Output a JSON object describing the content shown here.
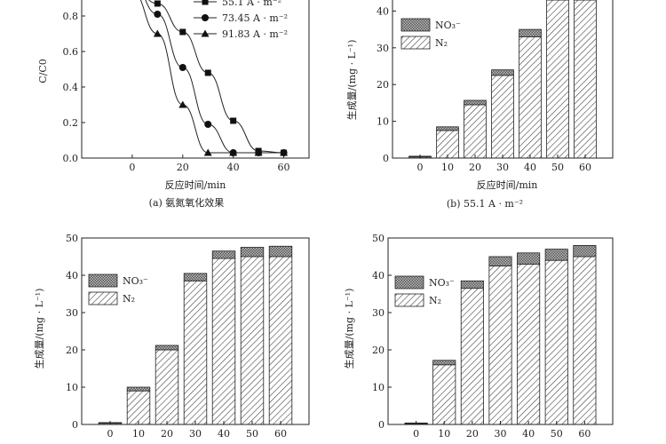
{
  "chart_data": [
    {
      "id": "a",
      "type": "line",
      "title": "",
      "caption": "(a) 氨氮氧化效果",
      "xlabel": "反应时间/min",
      "ylabel": "C/C0",
      "x_ticks": [
        "0",
        "20",
        "40",
        "60"
      ],
      "y_ticks": [
        "0.0",
        "0.2",
        "0.4",
        "0.6",
        "0.8"
      ],
      "xlim": [
        -20,
        70
      ],
      "ylim": [
        0,
        0.85
      ],
      "series": [
        {
          "name": "55.1 A · m⁻²",
          "marker": "square",
          "x": [
            10,
            20,
            30,
            40,
            50,
            60
          ],
          "y": [
            0.87,
            0.71,
            0.48,
            0.21,
            0.04,
            0.03
          ]
        },
        {
          "name": "73.45 A · m⁻²",
          "marker": "circle",
          "x": [
            10,
            20,
            30,
            40,
            50,
            60
          ],
          "y": [
            0.81,
            0.51,
            0.19,
            0.03,
            0.03,
            0.03
          ]
        },
        {
          "name": "91.83 A · m⁻²",
          "marker": "triangle",
          "x": [
            10,
            20,
            30,
            40,
            50,
            60
          ],
          "y": [
            0.7,
            0.3,
            0.03,
            0.03,
            0.03,
            0.03
          ]
        }
      ]
    },
    {
      "id": "b",
      "type": "bar",
      "caption": "(b) 55.1 A · m⁻²",
      "xlabel": "反应时间/min",
      "ylabel": "生成量/(mg · L⁻¹)",
      "categories": [
        "0",
        "10",
        "20",
        "30",
        "40",
        "50",
        "60"
      ],
      "y_ticks": [
        "0",
        "10",
        "20",
        "30",
        "40"
      ],
      "ylim": [
        0,
        43
      ],
      "series": [
        {
          "name": "N₂",
          "values": [
            0.3,
            7.5,
            14.5,
            22.5,
            33.0,
            43.0,
            43.0
          ]
        },
        {
          "name": "NO₃⁻",
          "values": [
            0.2,
            1.0,
            1.2,
            1.5,
            2.0,
            2.0,
            2.0
          ]
        }
      ]
    },
    {
      "id": "c",
      "type": "bar",
      "caption": "",
      "xlabel": "",
      "ylabel": "生成量/(mg · L⁻¹)",
      "categories": [
        "0",
        "10",
        "20",
        "30",
        "40",
        "50",
        "60"
      ],
      "y_ticks": [
        "0",
        "10",
        "20",
        "30",
        "40",
        "50"
      ],
      "ylim": [
        0,
        50
      ],
      "series": [
        {
          "name": "N₂",
          "values": [
            0.3,
            9.0,
            20.0,
            38.5,
            44.5,
            45.0,
            45.0
          ]
        },
        {
          "name": "NO₃⁻",
          "values": [
            0.2,
            1.0,
            1.2,
            2.0,
            2.0,
            2.5,
            2.8
          ]
        }
      ]
    },
    {
      "id": "d",
      "type": "bar",
      "caption": "",
      "xlabel": "",
      "ylabel": "生成量/(mg · L⁻¹)",
      "categories": [
        "0",
        "10",
        "20",
        "30",
        "40",
        "50",
        "60"
      ],
      "y_ticks": [
        "0",
        "10",
        "20",
        "30",
        "40",
        "50"
      ],
      "ylim": [
        0,
        50
      ],
      "series": [
        {
          "name": "N₂",
          "values": [
            0.2,
            16.0,
            36.5,
            42.5,
            43.0,
            44.0,
            45.0
          ]
        },
        {
          "name": "NO₃⁻",
          "values": [
            0.2,
            1.2,
            2.0,
            2.5,
            3.0,
            3.0,
            3.0
          ]
        }
      ]
    }
  ]
}
